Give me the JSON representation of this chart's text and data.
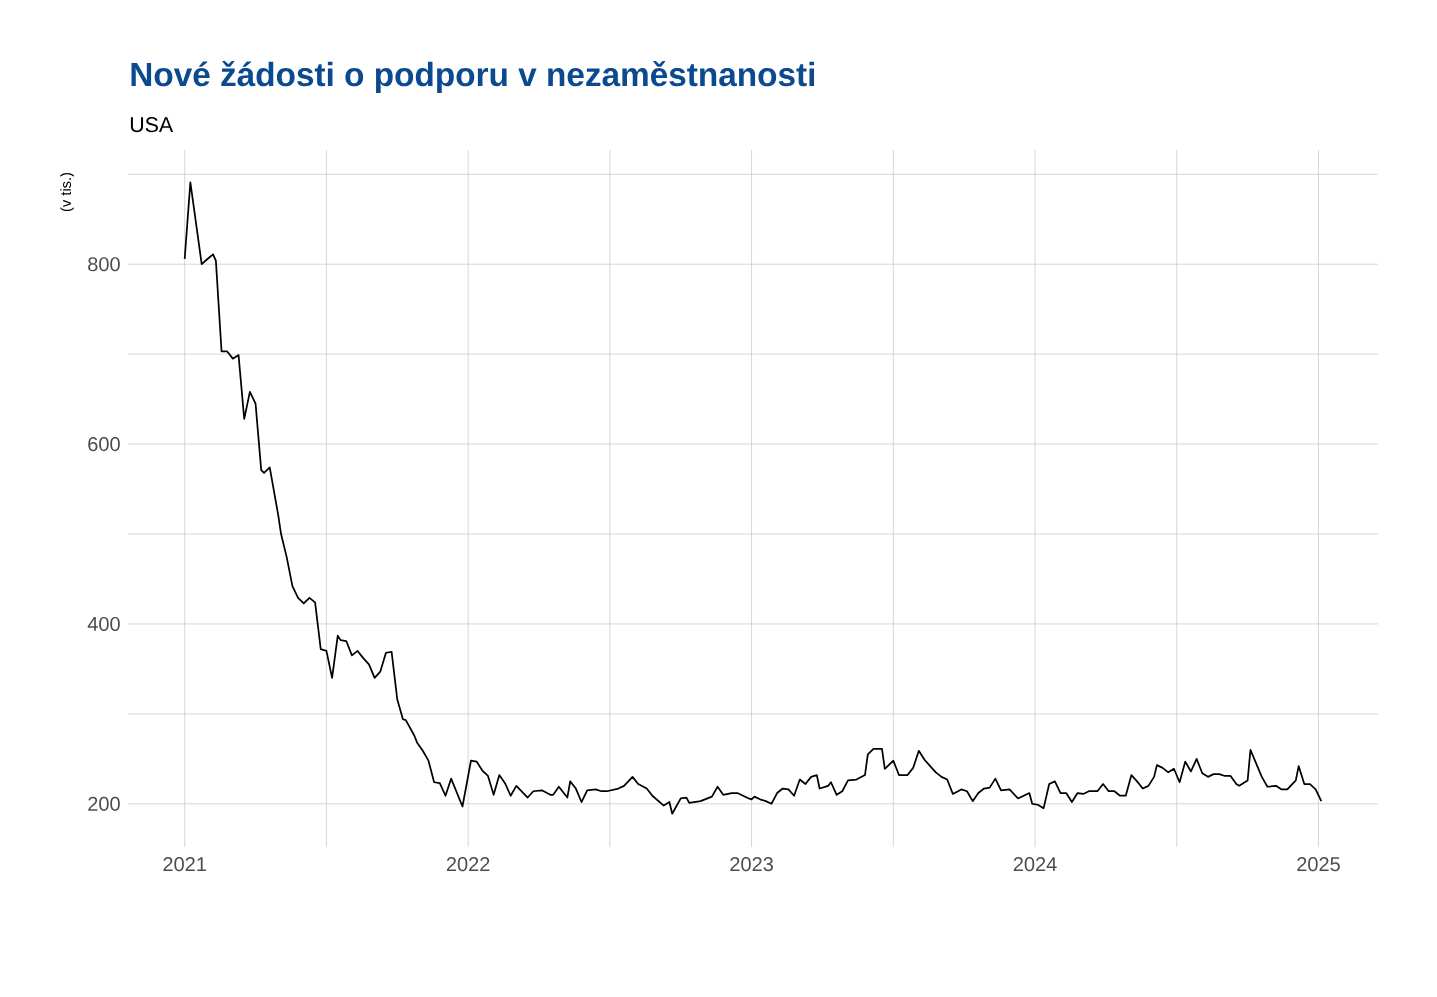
{
  "chart_data": {
    "type": "line",
    "title": "Nové žádosti o podporu v nezaměstnanosti",
    "subtitle": "USA",
    "ylabel": "(v tis.)",
    "xlim": [
      2020.8,
      2025.21
    ],
    "ylim": [
      152,
      927
    ],
    "xticks": [
      2021,
      {
        "value": 2021.5,
        "label": null
      },
      2022,
      {
        "value": 2022.5,
        "label": null
      },
      2023,
      {
        "value": 2023.5,
        "label": null
      },
      2024,
      {
        "value": 2024.5,
        "label": null
      },
      2025
    ],
    "yticks": [
      200,
      {
        "value": 300,
        "label": null
      },
      400,
      {
        "value": 500,
        "label": null
      },
      600,
      {
        "value": 700,
        "label": null
      },
      800,
      {
        "value": 900,
        "label": null
      }
    ],
    "grid": true,
    "marker": "none",
    "line_style": "solid",
    "series": [
      {
        "color": "#000000",
        "x": [
          2021.0,
          2021.02,
          2021.06,
          2021.07,
          2021.1,
          2021.11,
          2021.13,
          2021.15,
          2021.17,
          2021.19,
          2021.21,
          2021.23,
          2021.25,
          2021.27,
          2021.28,
          2021.3,
          2021.33,
          2021.34,
          2021.36,
          2021.38,
          2021.4,
          2021.42,
          2021.44,
          2021.46,
          2021.48,
          2021.5,
          2021.52,
          2021.54,
          2021.55,
          2021.57,
          2021.59,
          2021.61,
          2021.63,
          2021.65,
          2021.67,
          2021.69,
          2021.71,
          2021.73,
          2021.75,
          2021.77,
          2021.78,
          2021.81,
          2021.82,
          2021.84,
          2021.86,
          2021.88,
          2021.9,
          2021.92,
          2021.94,
          2021.98,
          2022.01,
          2022.03,
          2022.05,
          2022.07,
          2022.09,
          2022.11,
          2022.13,
          2022.15,
          2022.17,
          2022.21,
          2022.23,
          2022.26,
          2022.29,
          2022.3,
          2022.32,
          2022.35,
          2022.36,
          2022.38,
          2022.4,
          2022.42,
          2022.45,
          2022.47,
          2022.49,
          2022.53,
          2022.55,
          2022.58,
          2022.6,
          2022.63,
          2022.65,
          2022.69,
          2022.71,
          2022.72,
          2022.75,
          2022.77,
          2022.78,
          2022.82,
          2022.86,
          2022.88,
          2022.9,
          2022.93,
          2022.95,
          2022.99,
          2023.0,
          2023.01,
          2023.03,
          2023.05,
          2023.07,
          2023.09,
          2023.11,
          2023.13,
          2023.15,
          2023.17,
          2023.19,
          2023.21,
          2023.23,
          2023.24,
          2023.27,
          2023.28,
          2023.3,
          2023.32,
          2023.34,
          2023.37,
          2023.4,
          2023.41,
          2023.43,
          2023.46,
          2023.47,
          2023.5,
          2023.52,
          2023.55,
          2023.57,
          2023.59,
          2023.61,
          2023.63,
          2023.65,
          2023.67,
          2023.69,
          2023.71,
          2023.74,
          2023.76,
          2023.78,
          2023.8,
          2023.82,
          2023.84,
          2023.86,
          2023.88,
          2023.91,
          2023.94,
          2023.96,
          2023.98,
          2023.99,
          2024.01,
          2024.03,
          2024.05,
          2024.07,
          2024.09,
          2024.11,
          2024.13,
          2024.15,
          2024.17,
          2024.19,
          2024.22,
          2024.24,
          2024.26,
          2024.28,
          2024.3,
          2024.32,
          2024.34,
          2024.36,
          2024.38,
          2024.4,
          2024.42,
          2024.43,
          2024.45,
          2024.47,
          2024.49,
          2024.51,
          2024.53,
          2024.55,
          2024.57,
          2024.59,
          2024.61,
          2024.63,
          2024.65,
          2024.67,
          2024.69,
          2024.71,
          2024.72,
          2024.75,
          2024.76,
          2024.78,
          2024.8,
          2024.82,
          2024.85,
          2024.87,
          2024.89,
          2024.92,
          2024.93,
          2024.95,
          2024.97,
          2024.99,
          2025.01
        ],
        "values": [
          806,
          891,
          800,
          803,
          811,
          804,
          703,
          703,
          695,
          699,
          628,
          658,
          645,
          571,
          568,
          574,
          521,
          500,
          474,
          442,
          429,
          423,
          429,
          424,
          372,
          370,
          340,
          387,
          382,
          381,
          365,
          370,
          362,
          355,
          340,
          347,
          368,
          369,
          316,
          294,
          293,
          276,
          268,
          259,
          248,
          224,
          223,
          209,
          228,
          197,
          248,
          247,
          237,
          231,
          210,
          232,
          223,
          209,
          220,
          207,
          214,
          215,
          210,
          210,
          219,
          207,
          225,
          217,
          202,
          215,
          216,
          214,
          214,
          217,
          220,
          230,
          222,
          217,
          209,
          198,
          202,
          189,
          206,
          207,
          201,
          203,
          208,
          219,
          210,
          212,
          212,
          206,
          205,
          208,
          205,
          203,
          200,
          212,
          217,
          216,
          209,
          227,
          222,
          230,
          232,
          217,
          220,
          224,
          210,
          214,
          226,
          227,
          232,
          255,
          261,
          261,
          239,
          248,
          232,
          232,
          240,
          259,
          249,
          242,
          235,
          230,
          227,
          211,
          216,
          214,
          203,
          212,
          217,
          218,
          228,
          215,
          216,
          206,
          209,
          212,
          200,
          199,
          195,
          222,
          225,
          212,
          212,
          202,
          212,
          211,
          214,
          214,
          222,
          214,
          214,
          209,
          209,
          232,
          225,
          217,
          220,
          230,
          243,
          240,
          235,
          239,
          224,
          247,
          236,
          250,
          234,
          230,
          233,
          233,
          231,
          231,
          222,
          220,
          226,
          260,
          245,
          230,
          219,
          220,
          216,
          216,
          226,
          242,
          222,
          222,
          216,
          203
        ]
      }
    ]
  }
}
